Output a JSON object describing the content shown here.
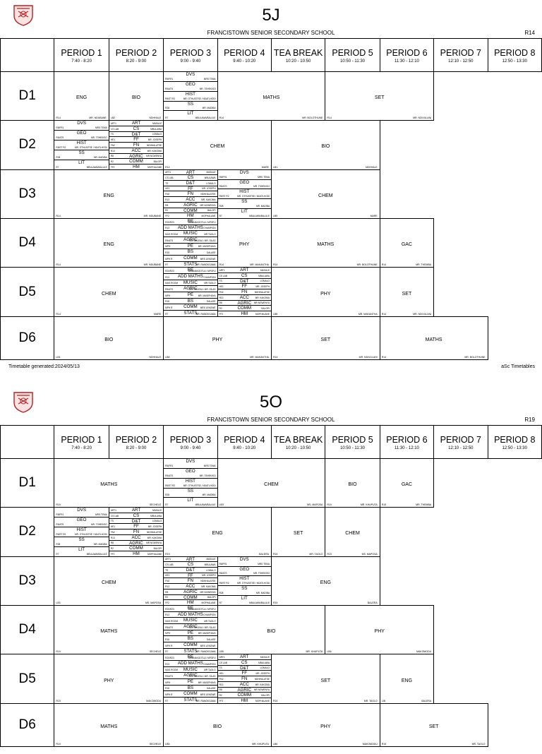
{
  "school": "FRANCISTOWN SENIOR SECONDARY SCHOOL",
  "tea_label": "TEA BREAK",
  "periods": [
    {
      "name": "PERIOD 1",
      "time": "7:40 - 8:20"
    },
    {
      "name": "PERIOD 2",
      "time": "8:20 - 9:00"
    },
    {
      "name": "PERIOD 3",
      "time": "9:00 - 9:40"
    },
    {
      "name": "PERIOD 4",
      "time": "9:40 - 10:20"
    },
    {
      "name": "TEA BREAK",
      "time": "10:20 - 10:50"
    },
    {
      "name": "PERIOD 5",
      "time": "10:50 - 11:30"
    },
    {
      "name": "PERIOD 6",
      "time": "11:30 - 12:10"
    },
    {
      "name": "PERIOD 7",
      "time": "12:10 - 12:50"
    },
    {
      "name": "PERIOD 8",
      "time": "12:50 - 13:30"
    }
  ],
  "days": [
    "D1",
    "D2",
    "D3",
    "D4",
    "D5",
    "D6"
  ],
  "footer_left": "Timetable generated:2024/05/13",
  "footer_right": "aSc Timetables",
  "option_sets": {
    "A": [
      {
        "subject": "DVS",
        "room": "R5/FR1",
        "teacher": "MRS TEMA"
      },
      {
        "subject": "GEO",
        "room": "R5/ATS",
        "teacher": "MR. TSHEKISO"
      },
      {
        "subject": "HIST",
        "room": "R5/ST R2",
        "teacher": "MR. OTHUSITSE / NDATLHODI"
      },
      {
        "subject": "SS",
        "room": "R28",
        "teacher": "MR. MADIBA"
      },
      {
        "subject": "LIT",
        "room": "R7",
        "teacher": "MBULAWA/BALULE"
      }
    ],
    "B": [
      {
        "subject": "ART",
        "room": "ART1",
        "teacher": "MASULE"
      },
      {
        "subject": "CS",
        "room": "CS LAB",
        "teacher": "MBULAWA"
      },
      {
        "subject": "D&T",
        "room": "TS",
        "teacher": "LOMALO"
      },
      {
        "subject": "FF",
        "room": "HE1",
        "teacher": "MR. JOSEPH"
      },
      {
        "subject": "FN",
        "room": "FN2",
        "teacher": "NDHHALATSE"
      },
      {
        "subject": "ACC",
        "room": "R13",
        "teacher": "MR. KAKOMA"
      },
      {
        "subject": "AGRIC",
        "room": "R8",
        "teacher": "MR NGWENYA"
      },
      {
        "subject": "COMM",
        "room": "R2",
        "teacher": "BALOPI"
      },
      {
        "subject": "HM",
        "room": "FF2",
        "teacher": "MOPHALANE"
      }
    ],
    "C": [
      {
        "subject": "RE",
        "room": "R20/R23",
        "teacher": "MONNAKGOTLA / MPOFU"
      },
      {
        "subject": "ADD MATHS",
        "room": "R13",
        "teacher": "CHAMPION"
      },
      {
        "subject": "MUSIC",
        "room": "MUS ROOM",
        "teacher": "MR TAOLO"
      },
      {
        "subject": "AGRIC",
        "room": "R5/ATS",
        "teacher": "MR. SELEKA / MR. SILAS"
      },
      {
        "subject": "PE",
        "room": "MPH",
        "teacher": "MR. MASIPHAYA"
      },
      {
        "subject": "BS",
        "room": "R16",
        "teacher": "DALASE"
      },
      {
        "subject": "COMM",
        "room": "MPH R",
        "teacher": "MRS LENGWE"
      },
      {
        "subject": "STATS",
        "room": "R7",
        "teacher": "MR. RAMOKGAMA"
      }
    ]
  },
  "sheets": [
    {
      "title": "5J",
      "room": "R14",
      "rows": [
        [
          {
            "type": "cell",
            "span": 1,
            "subject": "ENG",
            "room": "R14",
            "teacher": "MR. NDUBANE"
          },
          {
            "type": "cell",
            "span": 1,
            "subject": "BIO",
            "room": "LB2",
            "teacher": "NDHHALE"
          },
          {
            "type": "opt",
            "set": "A"
          },
          {
            "type": "cell",
            "span": 2,
            "subject": "MATHS",
            "room": "R14",
            "teacher": "MR. BOLOTHUNE"
          },
          {
            "type": "cell",
            "span": 2,
            "subject": "SET",
            "room": "R14",
            "teacher": "MR. NDIVULANI"
          }
        ],
        [
          {
            "type": "opt",
            "set": "A"
          },
          {
            "type": "opt",
            "set": "B"
          },
          {
            "type": "cell",
            "span": 2,
            "subject": "CHEM",
            "room": "R14",
            "teacher": "MARE"
          },
          {
            "type": "cell",
            "span": 2,
            "subject": "BIO",
            "room": "LB1",
            "teacher": "NDHHALE"
          }
        ],
        [
          {
            "type": "cell",
            "span": 2,
            "subject": "ENG",
            "room": "R14",
            "teacher": "MR. NDUBANE"
          },
          {
            "type": "opt",
            "set": "B"
          },
          {
            "type": "opt",
            "set": "A"
          },
          {
            "type": "cell",
            "span": 2,
            "subject": "CHEM",
            "room": "LB5",
            "teacher": "MARE"
          }
        ],
        [
          {
            "type": "cell",
            "span": 2,
            "subject": "ENG",
            "room": "R14",
            "teacher": "MR. NDUBANE"
          },
          {
            "type": "opt",
            "set": "C"
          },
          {
            "type": "cell",
            "span": 1,
            "subject": "PHY",
            "room": "R14",
            "teacher": "MR. MAKANTHA"
          },
          {
            "type": "cell",
            "span": 2,
            "subject": "MATHS",
            "room": "R14",
            "teacher": "MR. BOLOTHUNE"
          },
          {
            "type": "cell",
            "span": 1,
            "subject": "GAC",
            "room": "R14",
            "teacher": "MR. THEMBA"
          }
        ],
        [
          {
            "type": "cell",
            "span": 2,
            "subject": "CHEM",
            "room": "R14",
            "teacher": "MARE"
          },
          {
            "type": "opt",
            "set": "C"
          },
          {
            "type": "opt",
            "set": "B"
          },
          {
            "type": "cell",
            "span": 2,
            "subject": "PHY",
            "room": "LB8",
            "teacher": "MR. MAKANTHA"
          },
          {
            "type": "cell",
            "span": 1,
            "subject": "SET",
            "room": "R14",
            "teacher": "MR. NDIVULANI"
          }
        ],
        [
          {
            "type": "cell",
            "span": 2,
            "subject": "BIO",
            "room": "LB1",
            "teacher": "NDHHALE"
          },
          {
            "type": "cell",
            "span": 2,
            "subject": "PHY",
            "room": "LB8",
            "teacher": "MR. MAKANTHA"
          },
          {
            "type": "cell",
            "span": 2,
            "subject": "SET",
            "room": "R14",
            "teacher": "MR. NDIVULANI"
          },
          {
            "type": "cell",
            "span": 2,
            "subject": "MATHS",
            "room": "R14",
            "teacher": "MR. BOLOTHUNE"
          }
        ]
      ]
    },
    {
      "title": "5O",
      "room": "R19",
      "rows": [
        [
          {
            "type": "cell",
            "span": 2,
            "subject": "MATHS",
            "room": "R19",
            "teacher": "SECHELE"
          },
          {
            "type": "opt",
            "set": "A"
          },
          {
            "type": "cell",
            "span": 2,
            "subject": "CHEM",
            "room": "LB3",
            "teacher": "MS. MAPOSA"
          },
          {
            "type": "cell",
            "span": 1,
            "subject": "BIO",
            "room": "R19",
            "teacher": "MR. KHUPUTA"
          },
          {
            "type": "cell",
            "span": 1,
            "subject": "GAC",
            "room": "R19",
            "teacher": "MR. THEMBA"
          }
        ],
        [
          {
            "type": "opt",
            "set": "A"
          },
          {
            "type": "opt",
            "set": "B"
          },
          {
            "type": "cell",
            "span": 2,
            "subject": "ENG",
            "room": "R19",
            "teacher": "BALERA"
          },
          {
            "type": "cell",
            "span": 1,
            "subject": "SET",
            "room": "R19",
            "teacher": "MR. TAOLO"
          },
          {
            "type": "cell",
            "span": 1,
            "subject": "CHEM",
            "room": "R19",
            "teacher": "MS. MAPOSA"
          }
        ],
        [
          {
            "type": "cell",
            "span": 2,
            "subject": "CHEM",
            "room": "LB3",
            "teacher": "MS. MAPOSA"
          },
          {
            "type": "opt",
            "set": "B"
          },
          {
            "type": "opt",
            "set": "A"
          },
          {
            "type": "cell",
            "span": 2,
            "subject": "ENG",
            "room": "R19",
            "teacher": "BALERA"
          }
        ],
        [
          {
            "type": "cell",
            "span": 2,
            "subject": "MATHS",
            "room": "R19",
            "teacher": "SECHELE"
          },
          {
            "type": "opt",
            "set": "C"
          },
          {
            "type": "cell",
            "span": 2,
            "subject": "BIO",
            "room": "LB5",
            "teacher": "MR. KHUPUTA"
          },
          {
            "type": "cell",
            "span": 2,
            "subject": "PHY",
            "room": "LB6",
            "teacher": "MAKOMODU"
          }
        ],
        [
          {
            "type": "cell",
            "span": 2,
            "subject": "PHY",
            "room": "R19",
            "teacher": "MAKOMODU"
          },
          {
            "type": "opt",
            "set": "C"
          },
          {
            "type": "opt",
            "set": "B"
          },
          {
            "type": "cell",
            "span": 2,
            "subject": "SET",
            "room": "R19",
            "teacher": "MR. TAOLO"
          },
          {
            "type": "cell",
            "span": 1,
            "subject": "ENG",
            "room": "LIB",
            "teacher": "BALERA"
          }
        ],
        [
          {
            "type": "cell",
            "span": 2,
            "subject": "MATHS",
            "room": "R19",
            "teacher": "SECHELE"
          },
          {
            "type": "cell",
            "span": 2,
            "subject": "BIO",
            "room": "LB5",
            "teacher": "MR. KHUPUTA"
          },
          {
            "type": "cell",
            "span": 2,
            "subject": "PHY",
            "room": "LB6",
            "teacher": "MAKOMODU"
          },
          {
            "type": "cell",
            "span": 2,
            "subject": "SET",
            "room": "R19",
            "teacher": "MR. TAOLO"
          }
        ]
      ]
    }
  ]
}
